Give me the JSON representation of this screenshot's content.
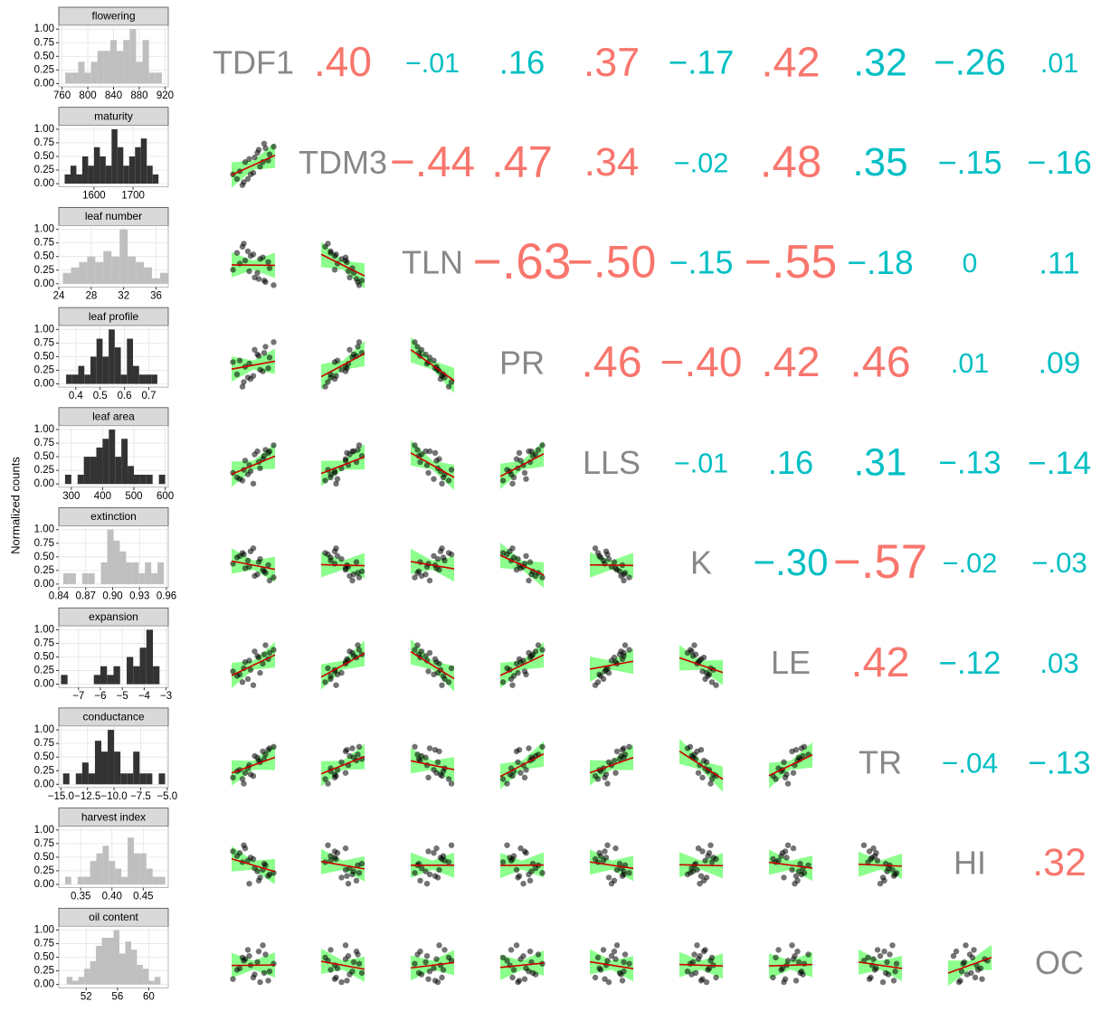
{
  "chart_data": {
    "type": "pairs",
    "histograms": {
      "ylabel": "Normalized counts",
      "ylim": [
        -0.06,
        1.07
      ],
      "yticks": [
        {
          "value": 0,
          "label": "0.00"
        },
        {
          "value": 0.25,
          "label": "0.25"
        },
        {
          "value": 0.5,
          "label": "0.50"
        },
        {
          "value": 0.75,
          "label": "0.75"
        },
        {
          "value": 1,
          "label": "1.00"
        }
      ],
      "panels": [
        {
          "title": "flowering",
          "color": "#bfbfbf",
          "xlim": [
            755,
            925
          ],
          "xticks": [
            760,
            800,
            840,
            880,
            920
          ],
          "bins": [
            765,
            775,
            785,
            795,
            805,
            815,
            825,
            835,
            845,
            855,
            865,
            875,
            885,
            895,
            905,
            915
          ],
          "counts": [
            0.2,
            0.2,
            0.4,
            0.2,
            0.4,
            0.6,
            0.6,
            0.8,
            0.6,
            0.8,
            1.0,
            0.4,
            0.8,
            0.2,
            0.2
          ]
        },
        {
          "title": "maturity",
          "color": "#333333",
          "xlim": [
            1510,
            1790
          ],
          "xticks": [
            1600,
            1700
          ],
          "bins": [
            1525,
            1540,
            1555,
            1570,
            1585,
            1600,
            1615,
            1630,
            1645,
            1660,
            1675,
            1690,
            1705,
            1720,
            1735,
            1750,
            1765
          ],
          "counts": [
            0.17,
            0.33,
            0.17,
            0.5,
            0.33,
            0.67,
            0.5,
            0.33,
            1.0,
            0.67,
            0.33,
            0.5,
            0.67,
            0.83,
            0.33,
            0.17
          ]
        },
        {
          "title": "leaf number",
          "color": "#bfbfbf",
          "xlim": [
            24,
            37.5
          ],
          "xticks": [
            24,
            28,
            32,
            36
          ],
          "bins": [
            24.5,
            25.5,
            26.5,
            27.5,
            28.5,
            29.5,
            30.5,
            31.5,
            32.5,
            33.5,
            34.5,
            35.5,
            36.5,
            37.5
          ],
          "counts": [
            0.2,
            0.3,
            0.4,
            0.5,
            0.4,
            0.6,
            0.5,
            1.0,
            0.5,
            0.4,
            0.3,
            0.1,
            0.2
          ]
        },
        {
          "title": "leaf profile",
          "color": "#333333",
          "xlim": [
            0.33,
            0.78
          ],
          "xticks": [
            0.4,
            0.5,
            0.6,
            0.7
          ],
          "bins": [
            0.36,
            0.385,
            0.41,
            0.435,
            0.46,
            0.485,
            0.51,
            0.535,
            0.56,
            0.585,
            0.61,
            0.635,
            0.66,
            0.685,
            0.71,
            0.735,
            0.76
          ],
          "counts": [
            0.17,
            0.17,
            0.33,
            0.17,
            0.5,
            0.83,
            0.5,
            1.0,
            0.67,
            0.17,
            0.83,
            0.33,
            0.17,
            0.17,
            0.17,
            0
          ]
        },
        {
          "title": "leaf area",
          "color": "#333333",
          "xlim": [
            260,
            610
          ],
          "xticks": [
            300,
            400,
            500,
            600
          ],
          "bins": [
            280,
            300,
            320,
            340,
            360,
            380,
            400,
            420,
            440,
            460,
            480,
            500,
            520,
            540,
            560,
            580,
            600
          ],
          "counts": [
            0.17,
            0,
            0.17,
            0.5,
            0.5,
            0.67,
            0.83,
            1.0,
            0.5,
            0.83,
            0.33,
            0.17,
            0.17,
            0.17,
            0,
            0.17
          ]
        },
        {
          "title": "extinction",
          "color": "#bfbfbf",
          "xlim": [
            0.84,
            0.962
          ],
          "xticks": [
            0.84,
            0.87,
            {
              "value": 0.9,
              "label": "0.90"
            },
            0.93,
            0.96
          ],
          "bins": [
            0.845,
            0.852,
            0.859,
            0.866,
            0.873,
            0.88,
            0.887,
            0.894,
            0.901,
            0.908,
            0.915,
            0.922,
            0.929,
            0.936,
            0.943,
            0.95,
            0.957
          ],
          "counts": [
            0.2,
            0.2,
            0,
            0.2,
            0.2,
            0,
            0.4,
            1.0,
            0.8,
            0.6,
            0.4,
            0.4,
            0.2,
            0.4,
            0.2,
            0.4
          ]
        },
        {
          "title": "expansion",
          "color": "#333333",
          "xlim": [
            -7.9,
            -2.9
          ],
          "xticks": [
            {
              "value": -7,
              "label": "−7"
            },
            {
              "value": -6,
              "label": "−6"
            },
            {
              "value": -5,
              "label": "−5"
            },
            {
              "value": -4,
              "label": "−4"
            },
            {
              "value": -3,
              "label": "−3"
            }
          ],
          "bins": [
            -7.8,
            -7.5,
            -7.2,
            -6.9,
            -6.6,
            -6.3,
            -6.0,
            -5.7,
            -5.4,
            -5.1,
            -4.8,
            -4.5,
            -4.2,
            -3.9,
            -3.6,
            -3.3
          ],
          "counts": [
            0.17,
            0,
            0,
            0,
            0,
            0.17,
            0.33,
            0.17,
            0.33,
            0,
            0.5,
            0.33,
            0.67,
            1.0,
            0.33
          ]
        },
        {
          "title": "conductance",
          "color": "#333333",
          "xlim": [
            -15.2,
            -4.9
          ],
          "xticks": [
            {
              "value": -15,
              "label": "−15.0"
            },
            {
              "value": -12.5,
              "label": "−12.5"
            },
            {
              "value": -10,
              "label": "−10.0"
            },
            {
              "value": -7.5,
              "label": "−7.5"
            },
            {
              "value": -5,
              "label": "−5.0"
            }
          ],
          "bins": [
            -14.8,
            -14.2,
            -13.6,
            -13.0,
            -12.4,
            -11.8,
            -11.2,
            -10.6,
            -10.0,
            -9.4,
            -8.8,
            -8.2,
            -7.6,
            -7.0,
            -6.4,
            -5.8,
            -5.2
          ],
          "counts": [
            0.2,
            0,
            0.2,
            0.4,
            0.2,
            0.8,
            0.6,
            1.0,
            0.6,
            0.2,
            0.2,
            0.6,
            0.2,
            0.2,
            0,
            0.2
          ]
        },
        {
          "title": "harvest index",
          "color": "#bfbfbf",
          "xlim": [
            0.315,
            0.49
          ],
          "xticks": [
            0.35,
            {
              "value": 0.4,
              "label": "0.40"
            },
            0.45
          ],
          "bins": [
            0.325,
            0.335,
            0.345,
            0.355,
            0.365,
            0.375,
            0.385,
            0.395,
            0.405,
            0.415,
            0.425,
            0.435,
            0.445,
            0.455,
            0.465,
            0.475,
            0.485
          ],
          "counts": [
            0.14,
            0,
            0.14,
            0.14,
            0.43,
            0.57,
            0.71,
            0.43,
            0.29,
            0.14,
            0.86,
            0.57,
            0.57,
            0.29,
            0.14,
            0.14
          ]
        },
        {
          "title": "oil content",
          "color": "#bfbfbf",
          "xlim": [
            48.5,
            62.5
          ],
          "xticks": [
            52,
            56,
            60
          ],
          "bins": [
            49.5,
            50.25,
            51,
            51.75,
            52.5,
            53.25,
            54,
            54.75,
            55.5,
            56.25,
            57,
            57.75,
            58.5,
            59.25,
            60,
            60.75,
            61.5
          ],
          "counts": [
            0.14,
            0.07,
            0.14,
            0.29,
            0.43,
            0.71,
            0.86,
            0.86,
            1.0,
            0.57,
            0.79,
            0.64,
            0.36,
            0.29,
            0.07,
            0.14
          ]
        }
      ]
    },
    "variables": [
      "TDF1",
      "TDM3",
      "TLN",
      "PR",
      "LLS",
      "K",
      "LE",
      "TR",
      "HI",
      "OC"
    ],
    "correlations": {
      "values": [
        [
          0.4,
          -0.01,
          0.16,
          0.37,
          -0.17,
          0.42,
          0.32,
          -0.26,
          0.01
        ],
        [
          -0.44,
          0.47,
          0.34,
          -0.02,
          0.48,
          0.35,
          -0.15,
          -0.16
        ],
        [
          -0.63,
          -0.5,
          -0.15,
          -0.55,
          -0.18,
          0,
          0.11
        ],
        [
          0.46,
          -0.4,
          0.42,
          0.46,
          0.01,
          0.09
        ],
        [
          -0.01,
          0.16,
          0.31,
          -0.13,
          -0.14
        ],
        [
          -0.3,
          -0.57,
          -0.02,
          -0.03
        ],
        [
          0.42,
          -0.12,
          0.03
        ],
        [
          -0.04,
          -0.13
        ],
        [
          0.32
        ]
      ],
      "value_labels": [
        [
          ".40",
          "−.01",
          ".16",
          ".37",
          "−.17",
          ".42",
          ".32",
          "−.26",
          ".01"
        ],
        [
          "−.44",
          ".47",
          ".34",
          "−.02",
          ".48",
          ".35",
          "−.15",
          "−.16"
        ],
        [
          "−.63",
          "−.50",
          "−.15",
          "−.55",
          "−.18",
          "0",
          ".11"
        ],
        [
          ".46",
          "−.40",
          ".42",
          ".46",
          ".01",
          ".09"
        ],
        [
          "−.01",
          ".16",
          ".31",
          "−.13",
          "−.14"
        ],
        [
          "−.30",
          "−.57",
          "−.02",
          "−.03"
        ],
        [
          ".42",
          "−.12",
          ".03"
        ],
        [
          "−.04",
          "−.13"
        ],
        [
          ".32"
        ]
      ],
      "colors": [
        [
          "#F8766D",
          "#00BFC4",
          "#00BFC4",
          "#F8766D",
          "#00BFC4",
          "#F8766D",
          "#00BFC4",
          "#00BFC4",
          "#00BFC4"
        ],
        [
          "#F8766D",
          "#F8766D",
          "#F8766D",
          "#00BFC4",
          "#F8766D",
          "#00BFC4",
          "#00BFC4",
          "#00BFC4"
        ],
        [
          "#F8766D",
          "#F8766D",
          "#00BFC4",
          "#F8766D",
          "#00BFC4",
          "#00BFC4",
          "#00BFC4"
        ],
        [
          "#F8766D",
          "#F8766D",
          "#F8766D",
          "#F8766D",
          "#00BFC4",
          "#00BFC4"
        ],
        [
          "#00BFC4",
          "#00BFC4",
          "#00BFC4",
          "#00BFC4",
          "#00BFC4"
        ],
        [
          "#00BFC4",
          "#F8766D",
          "#00BFC4",
          "#00BFC4"
        ],
        [
          "#F8766D",
          "#00BFC4",
          "#00BFC4"
        ],
        [
          "#00BFC4",
          "#00BFC4"
        ],
        [
          "#F8766D"
        ]
      ]
    },
    "observations": [
      [
        -1.2,
        -0.8,
        -1.5,
        0.3,
        -0.4,
        0.1,
        -0.6,
        0.5,
        0.9,
        -0.2,
        1.2,
        0.4,
        -1.0,
        0.7,
        1.5,
        0.0,
        -0.3,
        0.8,
        1.1,
        -0.7
      ],
      [
        -0.9,
        -1.3,
        -0.6,
        0.8,
        -0.9,
        0.5,
        0.2,
        -0.1,
        1.1,
        -0.6,
        0.7,
        1.0,
        -0.4,
        0.2,
        1.2,
        -0.5,
        0.4,
        1.4,
        0.3,
        -1.1
      ],
      [
        0.8,
        1.2,
        -0.3,
        -0.5,
        0.9,
        -0.8,
        0.3,
        0.4,
        -1.1,
        0.6,
        -0.2,
        -0.9,
        0.1,
        0.5,
        -1.3,
        0.7,
        -0.4,
        -1.0,
        0.2,
        1.4
      ],
      [
        -0.6,
        -1.4,
        0.2,
        0.7,
        -0.8,
        1.0,
        -0.1,
        -0.3,
        1.2,
        -0.9,
        0.5,
        0.6,
        0.3,
        -0.4,
        1.5,
        -0.7,
        0.1,
        0.8,
        -0.2,
        -1.1
      ],
      [
        -0.8,
        -1.0,
        -0.5,
        0.9,
        -0.6,
        0.7,
        0.3,
        -0.2,
        1.0,
        -0.4,
        0.9,
        0.2,
        -0.9,
        0.4,
        1.3,
        -1.2,
        0.0,
        0.6,
        0.8,
        -0.3
      ],
      [
        0.5,
        0.8,
        0.1,
        -0.6,
        0.3,
        -0.7,
        -0.2,
        0.4,
        -0.5,
        0.9,
        -1.0,
        0.2,
        0.6,
        -0.3,
        -0.8,
        1.1,
        -0.1,
        -0.4,
        0.0,
        0.7
      ],
      [
        -0.7,
        -1.1,
        -0.4,
        0.6,
        -0.9,
        0.9,
        0.2,
        -0.5,
        1.3,
        -0.3,
        0.8,
        0.5,
        -0.6,
        0.1,
        1.0,
        -1.3,
        0.3,
        0.7,
        0.4,
        -0.2
      ],
      [
        -0.4,
        -0.9,
        -0.8,
        0.5,
        -0.2,
        0.6,
        -0.5,
        0.2,
        0.7,
        -0.6,
        1.1,
        0.3,
        -0.3,
        0.9,
        1.2,
        -0.7,
        0.0,
        0.4,
        1.0,
        -1.2
      ],
      [
        0.6,
        0.2,
        0.9,
        -0.4,
        0.3,
        -0.2,
        1.1,
        -0.8,
        0.0,
        0.5,
        -0.6,
        -1.0,
        0.8,
        -0.3,
        -0.5,
        0.4,
        -1.2,
        0.1,
        -0.7,
        1.3
      ],
      [
        -0.3,
        0.5,
        -0.9,
        0.2,
        1.0,
        -0.6,
        0.4,
        -1.1,
        0.7,
        0.0,
        -0.4,
        0.9,
        -0.2,
        1.3,
        0.1,
        -0.8,
        0.6,
        -0.5,
        -1.0,
        0.3
      ]
    ]
  }
}
